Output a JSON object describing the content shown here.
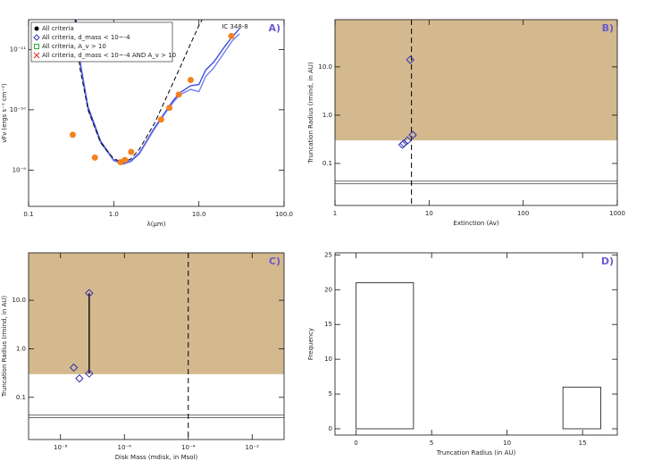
{
  "chart_data": [
    {
      "type": "line",
      "title": "IC 348-8",
      "panel_label": "A)",
      "x_label": "λ(μm)",
      "y_label": "νFν (ergs s⁻¹ cm⁻²)",
      "xscale": "log",
      "yscale": "log",
      "xlim": [
        0.1,
        100
      ],
      "ylim": [
        4e-09,
        3.2e-12
      ],
      "xticks": [
        {
          "value": 0.1,
          "label": "0.1"
        },
        {
          "value": 1,
          "label": "1.0"
        },
        {
          "value": 10,
          "label": "10.0"
        },
        {
          "value": 100,
          "label": "100.0"
        }
      ],
      "yticks": [
        {
          "value": 1e-09,
          "label": "10⁻⁹"
        },
        {
          "value": 1e-10,
          "label": "10⁻¹⁰"
        },
        {
          "value": 1e-11,
          "label": "10⁻¹¹"
        }
      ],
      "legend": [
        {
          "label": "All criteria",
          "marker": "circle",
          "color": "#000000"
        },
        {
          "label": "All criteria, d_mass < 10~-4",
          "marker": "diamond",
          "color": "#3030b0"
        },
        {
          "label": "All criteria, A_v > 10",
          "marker": "square",
          "color": "#33aa33"
        },
        {
          "label": "All criteria, d_mass < 10~-4 AND A_v > 10",
          "marker": "x",
          "color": "#dd2222"
        }
      ],
      "series": [
        {
          "mode": "lines",
          "color": "#3040e0",
          "x": [
            0.36,
            0.4,
            0.5,
            0.7,
            1,
            1.3,
            1.6,
            2,
            3,
            4,
            5,
            6,
            8,
            10,
            12,
            15,
            20,
            25,
            30
          ],
          "values": [
            3e-12,
            1.5e-11,
            9e-11,
            3.3e-10,
            6.8e-10,
            7.8e-10,
            7e-10,
            5.2e-10,
            2e-10,
            1.1e-10,
            7e-11,
            5.2e-11,
            4e-11,
            3.8e-11,
            2.2e-11,
            1.6e-11,
            9e-12,
            6e-12,
            4.5e-12
          ]
        },
        {
          "mode": "lines",
          "color": "#6a78f0",
          "x": [
            0.36,
            0.4,
            0.5,
            0.7,
            1,
            1.3,
            1.6,
            2,
            3,
            4,
            5,
            6,
            8,
            10,
            12,
            15,
            20,
            25,
            30
          ],
          "values": [
            3.5e-12,
            1.7e-11,
            1e-10,
            3.5e-10,
            7e-10,
            8e-10,
            7.2e-10,
            5.4e-10,
            2.1e-10,
            1.15e-10,
            7.5e-11,
            5.6e-11,
            4.6e-11,
            5e-11,
            2.8e-11,
            2e-11,
            1.1e-11,
            7e-12,
            5.5e-12
          ]
        },
        {
          "mode": "dashed",
          "color": "#000000",
          "x": [
            0.35,
            0.4,
            0.5,
            0.7,
            1,
            1.3,
            1.6,
            2,
            3,
            4,
            6,
            8,
            10,
            12
          ],
          "values": [
            3e-12,
            2e-11,
            1e-10,
            3.5e-10,
            6.5e-10,
            7.5e-10,
            6.5e-10,
            4.5e-10,
            1.7e-10,
            7e-11,
            2e-11,
            8e-12,
            4e-12,
            2.5e-12
          ]
        },
        {
          "mode": "markers",
          "color": "#f5821f",
          "x": [
            0.33,
            0.6,
            1.2,
            1.35,
            1.6,
            3.6,
            4.5,
            5.8,
            8,
            24
          ],
          "values": [
            2.6e-10,
            6.2e-10,
            7.4e-10,
            6.8e-10,
            5e-10,
            1.45e-10,
            9.3e-11,
            5.6e-11,
            3.2e-11,
            6e-12
          ]
        }
      ]
    },
    {
      "type": "scatter",
      "panel_label": "B)",
      "x_label": "Extinction (Av)",
      "y_label": "Truncation Radius (rmind, in AU)",
      "xscale": "log",
      "yscale": "log",
      "xlim": [
        1,
        1000
      ],
      "ylim": [
        0.0135,
        95
      ],
      "xticks": [
        1,
        10,
        100,
        1000
      ],
      "yticks": [
        {
          "value": 0.1,
          "label": "0.1"
        },
        {
          "value": 1,
          "label": "1.0"
        },
        {
          "value": 10,
          "label": "10.0"
        }
      ],
      "shade_above": 0.3,
      "shade_color": "#d4b98f",
      "vline": 6.5,
      "hlines": [
        0.043,
        0.038
      ],
      "color": "#3030b0",
      "x": [
        5.2,
        5.4,
        5.9,
        6.7,
        6.3
      ],
      "values": [
        0.245,
        0.26,
        0.3,
        0.39,
        14
      ]
    },
    {
      "type": "scatter",
      "panel_label": "C)",
      "x_label": "Disk Mass (mdisk, in Msol)",
      "y_label": "Truncation Radius (rmind, in AU)",
      "xscale": "log",
      "yscale": "log",
      "xlim": [
        1e-09,
        0.1
      ],
      "ylim": [
        0.0135,
        95
      ],
      "xticks": [
        {
          "value": 1e-08,
          "label": "10⁻⁸"
        },
        {
          "value": 1e-06,
          "label": "10⁻⁶"
        },
        {
          "value": 0.0001,
          "label": "10⁻⁴"
        },
        {
          "value": 0.01,
          "label": "10⁻²"
        }
      ],
      "yticks": [
        {
          "value": 0.1,
          "label": "0.1"
        },
        {
          "value": 1,
          "label": "1.0"
        },
        {
          "value": 10,
          "label": "10.0"
        }
      ],
      "shade_above": 0.3,
      "shade_color": "#d4b98f",
      "vline": 0.0001,
      "hlines": [
        0.043,
        0.038
      ],
      "range": {
        "x": 7.9e-08,
        "y": [
          0.31,
          14
        ]
      },
      "color": "#3030b0",
      "x": [
        2.6e-08,
        3.9e-08,
        7.9e-08,
        7.9e-08
      ],
      "values": [
        0.41,
        0.245,
        0.31,
        14
      ]
    },
    {
      "type": "histogram",
      "panel_label": "D)",
      "x_label": "Truncation Radius (in AU)",
      "y_label": "Frequency",
      "xlim": [
        -1.4,
        17.3
      ],
      "ylim": [
        -0.9,
        25.3
      ],
      "xticks": [
        0,
        5,
        10,
        15
      ],
      "yticks": [
        0,
        5,
        10,
        15,
        20,
        25
      ],
      "bins": [
        0,
        3.8,
        13.7,
        16.2
      ],
      "values": [
        21,
        0,
        6
      ]
    }
  ]
}
